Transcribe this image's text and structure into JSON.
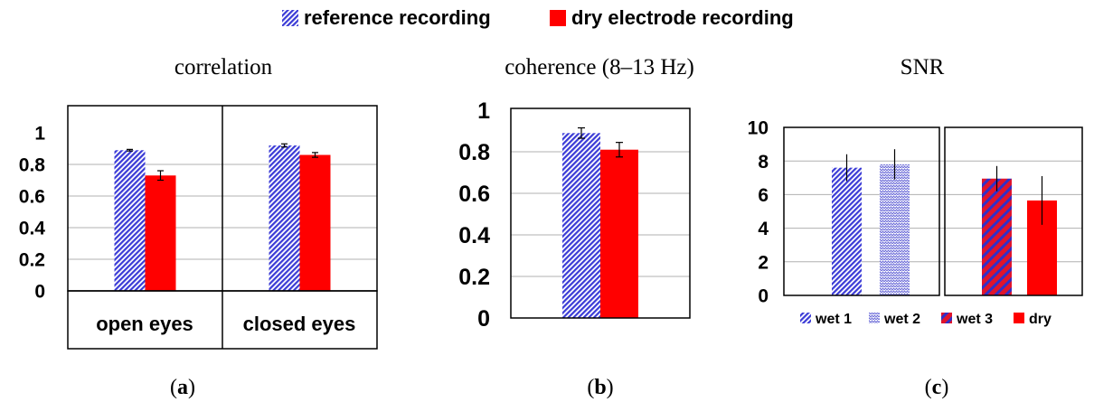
{
  "legend": {
    "items": [
      {
        "label": "reference recording",
        "pattern": "blue-hatch"
      },
      {
        "label": "dry electrode recording",
        "pattern": "red-solid"
      }
    ]
  },
  "colors": {
    "blue": "#3b3bd6",
    "red": "#ff0000",
    "grid": "#b0b0b0",
    "axis": "#000000"
  },
  "panel_labels": {
    "a": "(a)",
    "b": "(b)",
    "c": "(c)"
  },
  "chart_data": [
    {
      "panel": "a",
      "type": "bar",
      "title": "correlation",
      "xlabel": "",
      "ylabel": "",
      "ylim": [
        0,
        1
      ],
      "yticks": [
        "0",
        "0.2",
        "0.4",
        "0.6",
        "0.8",
        "1"
      ],
      "grid": true,
      "categories": [
        "open eyes",
        "closed eyes"
      ],
      "series": [
        {
          "name": "reference recording",
          "values": [
            0.89,
            0.92
          ],
          "errors": [
            0.005,
            0.01
          ]
        },
        {
          "name": "dry electrode recording",
          "values": [
            0.73,
            0.86
          ],
          "errors": [
            0.03,
            0.015
          ]
        }
      ]
    },
    {
      "panel": "b",
      "type": "bar",
      "title": "coherence (8–13 Hz)",
      "xlabel": "",
      "ylabel": "",
      "ylim": [
        0,
        1
      ],
      "yticks": [
        "0",
        "0.2",
        "0.4",
        "0.6",
        "0.8",
        "1"
      ],
      "grid": true,
      "categories": [
        ""
      ],
      "series": [
        {
          "name": "reference recording",
          "values": [
            0.89
          ],
          "errors": [
            0.025
          ]
        },
        {
          "name": "dry electrode recording",
          "values": [
            0.81
          ],
          "errors": [
            0.035
          ]
        }
      ]
    },
    {
      "panel": "c",
      "type": "bar",
      "title": "SNR",
      "xlabel": "",
      "ylabel": "",
      "ylim": [
        0,
        10
      ],
      "yticks": [
        "0",
        "2",
        "4",
        "6",
        "8",
        "10"
      ],
      "grid": true,
      "groups": 2,
      "bars": [
        {
          "name": "wet 1",
          "value": 7.6,
          "error": 0.8
        },
        {
          "name": "wet 2",
          "value": 7.8,
          "error": 0.9
        },
        {
          "name": "wet 3",
          "value": 6.95,
          "error": 0.75
        },
        {
          "name": "dry",
          "value": 5.65,
          "error": 1.45
        }
      ],
      "legend": [
        "wet 1",
        "wet 2",
        "wet 3",
        "dry"
      ]
    }
  ]
}
